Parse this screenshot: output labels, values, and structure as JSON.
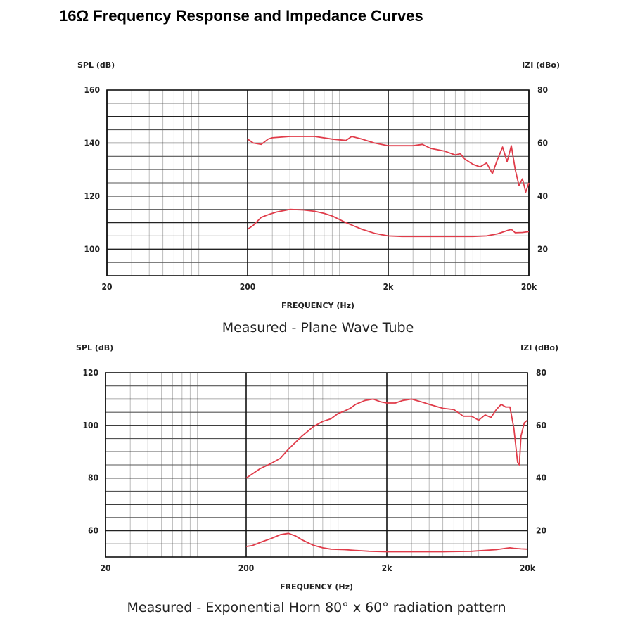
{
  "page": {
    "title": "16Ω Frequency Response and Impedance Curves"
  },
  "colors": {
    "curve": "#e03c4a",
    "grid_major": "#111111",
    "grid_minor": "#bdbdbd"
  },
  "chart_data": [
    {
      "type": "line",
      "caption": "Measured - Plane Wave Tube",
      "xlabel": "FREQUENCY (Hz)",
      "ylabel_left": "SPL (dB)",
      "ylabel_right": "IZI (dBo)",
      "xscale": "log",
      "xlim": [
        20,
        20000
      ],
      "x_ticks": [
        20,
        200,
        2000,
        20000
      ],
      "x_tick_labels": [
        "20",
        "200",
        "2k",
        "20k"
      ],
      "ylim_left": [
        90,
        160
      ],
      "ylim_right": [
        10,
        80
      ],
      "y_ticks_left": [
        160,
        140,
        120,
        100
      ],
      "y_tick_labels_left": [
        "160",
        "140",
        "120",
        "100"
      ],
      "y_ticks_right": [
        80,
        60,
        40,
        20
      ],
      "y_tick_labels_right": [
        "80",
        "60",
        "40",
        "20"
      ],
      "series": [
        {
          "name": "SPL",
          "axis": "left",
          "x": [
            200,
            220,
            250,
            280,
            300,
            400,
            500,
            600,
            800,
            1000,
            1100,
            1300,
            1600,
            2000,
            2500,
            3000,
            3500,
            4000,
            5000,
            6000,
            6500,
            7000,
            8000,
            9000,
            10000,
            11000,
            12000,
            13000,
            14000,
            15000,
            16000,
            17000,
            18000,
            19000,
            20000
          ],
          "y": [
            141.5,
            140,
            139.5,
            141.5,
            142,
            142.5,
            142.5,
            142.5,
            141.5,
            141,
            142.5,
            141.5,
            140,
            139,
            139,
            139,
            139.5,
            138,
            137,
            135.5,
            136,
            134,
            132,
            131,
            132.5,
            128.5,
            134,
            138.5,
            133,
            139,
            130,
            124,
            126.5,
            121.5,
            125
          ]
        },
        {
          "name": "Impedance",
          "axis": "right",
          "x": [
            200,
            220,
            250,
            280,
            320,
            400,
            500,
            600,
            700,
            800,
            1000,
            1300,
            1600,
            2000,
            2500,
            3000,
            4000,
            6000,
            8000,
            10000,
            12000,
            14000,
            15000,
            16000,
            18000,
            20000
          ],
          "y": [
            27.5,
            29,
            32,
            33,
            34,
            35,
            34.8,
            34.3,
            33.5,
            32.5,
            30,
            27.5,
            26,
            25,
            24.8,
            24.8,
            24.8,
            24.8,
            24.8,
            25,
            25.8,
            27,
            27.5,
            26.2,
            26.3,
            26.6
          ]
        }
      ]
    },
    {
      "type": "line",
      "caption": "Measured - Exponential Horn 80° x 60° radiation pattern",
      "xlabel": "FREQUENCY (Hz)",
      "ylabel_left": "SPL (dB)",
      "ylabel_right": "IZI (dBo)",
      "xscale": "log",
      "xlim": [
        20,
        20000
      ],
      "x_ticks": [
        20,
        200,
        2000,
        20000
      ],
      "x_tick_labels": [
        "20",
        "200",
        "2k",
        "20k"
      ],
      "ylim_left": [
        50,
        120
      ],
      "ylim_right": [
        10,
        80
      ],
      "y_ticks_left": [
        120,
        100,
        80,
        60
      ],
      "y_tick_labels_left": [
        "120",
        "100",
        "80",
        "60"
      ],
      "y_ticks_right": [
        80,
        60,
        40,
        20
      ],
      "y_tick_labels_right": [
        "80",
        "60",
        "40",
        "20"
      ],
      "series": [
        {
          "name": "SPL",
          "axis": "left",
          "x": [
            200,
            250,
            300,
            350,
            400,
            500,
            600,
            700,
            800,
            900,
            1000,
            1100,
            1200,
            1400,
            1600,
            1800,
            2000,
            2300,
            2600,
            3000,
            3500,
            4000,
            5000,
            6000,
            7000,
            8000,
            9000,
            10000,
            11000,
            12000,
            13000,
            14000,
            15000,
            16000,
            17000,
            17500,
            18000,
            19000,
            20000
          ],
          "y": [
            80,
            83.5,
            85.5,
            87.5,
            91,
            96,
            99.5,
            101.5,
            102.5,
            104.5,
            105.5,
            106.5,
            108,
            109.5,
            110,
            109,
            108.5,
            108.5,
            109.5,
            110,
            109,
            108,
            106.5,
            106,
            103.5,
            103.5,
            102,
            104,
            103,
            106,
            108,
            107,
            107,
            99,
            86,
            85,
            96,
            101,
            102
          ]
        },
        {
          "name": "Impedance",
          "axis": "right",
          "x": [
            200,
            220,
            250,
            300,
            350,
            400,
            450,
            500,
            600,
            700,
            800,
            1000,
            1200,
            1500,
            2000,
            3000,
            5000,
            8000,
            12000,
            14000,
            15000,
            16000,
            18000,
            20000
          ],
          "y": [
            14,
            14.3,
            15.5,
            17,
            18.5,
            19,
            18,
            16.5,
            14.5,
            13.5,
            13,
            12.8,
            12.5,
            12.2,
            12,
            12,
            12,
            12.2,
            12.8,
            13.3,
            13.5,
            13.3,
            13.1,
            13
          ]
        }
      ]
    }
  ]
}
